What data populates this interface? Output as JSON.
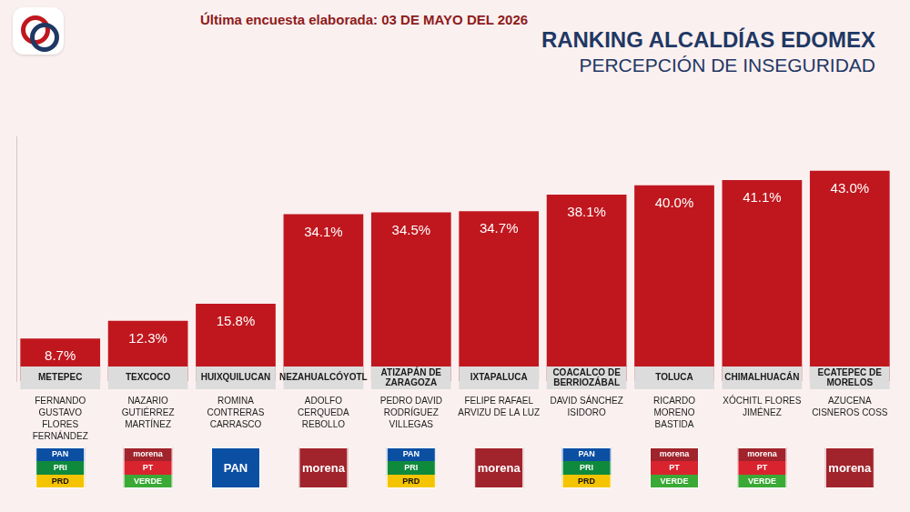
{
  "chart_data": {
    "type": "bar",
    "annotation": "Última encuesta elaborada: 03 DE MAYO DEL 2026",
    "title": "RANKING ALCALDÍAS EDOMEX",
    "subtitle": "PERCEPCIÓN DE INSEGURIDAD",
    "categories": [
      "METEPEC",
      "TEXCOCO",
      "HUIXQUILUCAN",
      "NEZAHUALCÓYOTL",
      "ATIZAPÁN DE ZARAGOZA",
      "IXTAPALUCA",
      "COACALCO DE BERRIOZÁBAL",
      "TOLUCA",
      "CHIMALHUACÁN",
      "ECATEPEC DE MORELOS"
    ],
    "values": [
      8.7,
      12.3,
      15.8,
      34.1,
      34.5,
      34.7,
      38.1,
      40.0,
      41.1,
      43.0
    ],
    "value_labels": [
      "8.7%",
      "12.3%",
      "15.8%",
      "34.1%",
      "34.5%",
      "34.7%",
      "38.1%",
      "40.0%",
      "41.1%",
      "43.0%"
    ],
    "candidates": [
      "FERNANDO GUSTAVO FLORES FERNÁNDEZ",
      "NAZARIO GUTIÉRREZ MARTÍNEZ",
      "ROMINA CONTRERAS CARRASCO",
      "ADOLFO CERQUEDA REBOLLO",
      "PEDRO DAVID RODRÍGUEZ VILLEGAS",
      "FELIPE RAFAEL ARVIZU DE LA LUZ",
      "DAVID SÁNCHEZ ISIDORO",
      "RICARDO MORENO BASTIDA",
      "XÓCHITL FLORES JIMÉNEZ",
      "AZUCENA CISNEROS COSS"
    ],
    "parties": [
      [
        {
          "name": "PAN",
          "color": "#0b4fa3"
        },
        {
          "name": "PRI",
          "color": "#0f8a3c"
        },
        {
          "name": "PRD",
          "color": "#f5c400"
        }
      ],
      [
        {
          "name": "morena",
          "color": "#a1232b"
        },
        {
          "name": "PT",
          "color": "#d9232e"
        },
        {
          "name": "VERDE",
          "color": "#3aa935"
        }
      ],
      [
        {
          "name": "PAN",
          "color": "#0b4fa3"
        }
      ],
      [
        {
          "name": "morena",
          "color": "#a1232b"
        }
      ],
      [
        {
          "name": "PAN",
          "color": "#0b4fa3"
        },
        {
          "name": "PRI",
          "color": "#0f8a3c"
        },
        {
          "name": "PRD",
          "color": "#f5c400"
        }
      ],
      [
        {
          "name": "morena",
          "color": "#a1232b"
        }
      ],
      [
        {
          "name": "PAN",
          "color": "#0b4fa3"
        },
        {
          "name": "PRI",
          "color": "#0f8a3c"
        },
        {
          "name": "PRD",
          "color": "#f5c400"
        }
      ],
      [
        {
          "name": "morena",
          "color": "#a1232b"
        },
        {
          "name": "PT",
          "color": "#d9232e"
        },
        {
          "name": "VERDE",
          "color": "#3aa935"
        }
      ],
      [
        {
          "name": "morena",
          "color": "#a1232b"
        },
        {
          "name": "PT",
          "color": "#d9232e"
        },
        {
          "name": "VERDE",
          "color": "#3aa935"
        }
      ],
      [
        {
          "name": "morena",
          "color": "#a1232b"
        }
      ]
    ],
    "color": "#c0171e",
    "ylim": [
      0,
      50
    ],
    "grid": false,
    "data_labels": true,
    "tick_labels": "x"
  }
}
